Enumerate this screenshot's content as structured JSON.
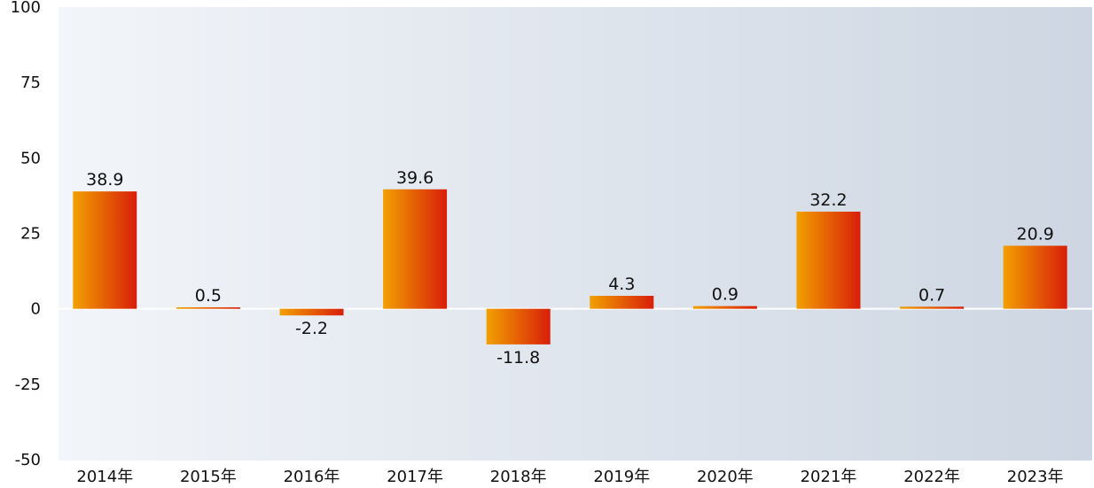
{
  "chart_data": {
    "type": "bar",
    "categories": [
      "2014年",
      "2015年",
      "2016年",
      "2017年",
      "2018年",
      "2019年",
      "2020年",
      "2021年",
      "2022年",
      "2023年"
    ],
    "values": [
      38.9,
      0.5,
      -2.2,
      39.6,
      -11.8,
      4.3,
      0.9,
      32.2,
      0.7,
      20.9
    ],
    "value_labels": [
      "38.9",
      "0.5",
      "-2.2",
      "39.6",
      "-11.8",
      "4.3",
      "0.9",
      "32.2",
      "0.7",
      "20.9"
    ],
    "title": "",
    "xlabel": "",
    "ylabel": "",
    "ylim": [
      -50,
      100
    ],
    "yticks": [
      "100",
      "75",
      "50",
      "25",
      "0",
      "-25",
      "-50"
    ],
    "ytick_values": [
      100,
      75,
      50,
      25,
      0,
      -25,
      -50
    ],
    "grid": false,
    "legend": "none",
    "colors": {
      "bar_gradient_start": "#f2a000",
      "bar_gradient_end": "#d81e0a",
      "plot_bg_left": "#f2f5f9",
      "plot_bg_right": "#cdd6e2",
      "zero_line": "#ffffff"
    }
  }
}
